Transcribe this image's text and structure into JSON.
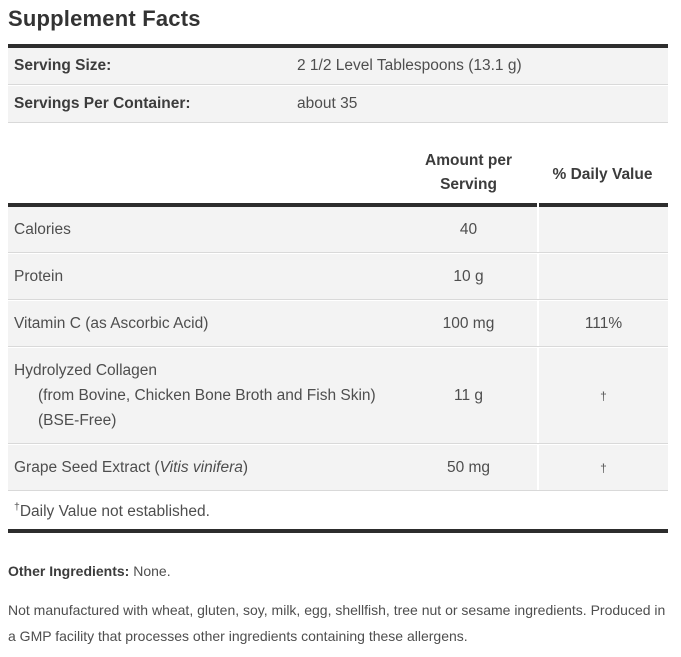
{
  "title": "Supplement Facts",
  "serving_info": {
    "rows": [
      {
        "label": "Serving Size:",
        "value": "2 1/2 Level Tablespoons (13.1 g)"
      },
      {
        "label": "Servings Per Container:",
        "value": "about 35"
      }
    ]
  },
  "nutrient_table": {
    "headers": {
      "amount": "Amount per Serving",
      "daily_value": "% Daily Value"
    },
    "rows": [
      {
        "name": "Calories",
        "amount": "40",
        "dv": ""
      },
      {
        "name": "Protein",
        "amount": "10 g",
        "dv": ""
      },
      {
        "name": "Vitamin C (as Ascorbic Acid)",
        "amount": "100 mg",
        "dv": "111%"
      },
      {
        "name": "Hydrolyzed Collagen",
        "name_detail": "(from Bovine, Chicken Bone Broth and Fish Skin) (BSE-Free)",
        "amount": "11 g",
        "dv": "†"
      },
      {
        "name_prefix": "Grape Seed Extract (",
        "name_italic": "Vitis vinifera",
        "name_suffix": ")",
        "amount": "50 mg",
        "dv": "†"
      }
    ],
    "footnote_symbol": "†",
    "footnote_text": "Daily Value not established."
  },
  "other_ingredients": {
    "label": "Other Ingredients:",
    "value": "None."
  },
  "allergen_note": "Not manufactured with wheat, gluten, soy, milk, egg, shellfish, tree nut or sesame ingredients. Produced in a GMP facility that processes other ingredients containing these allergens.",
  "colors": {
    "rule": "#2d2d2d",
    "row_background": "#f3f3f3",
    "text": "#4e4e4e"
  }
}
